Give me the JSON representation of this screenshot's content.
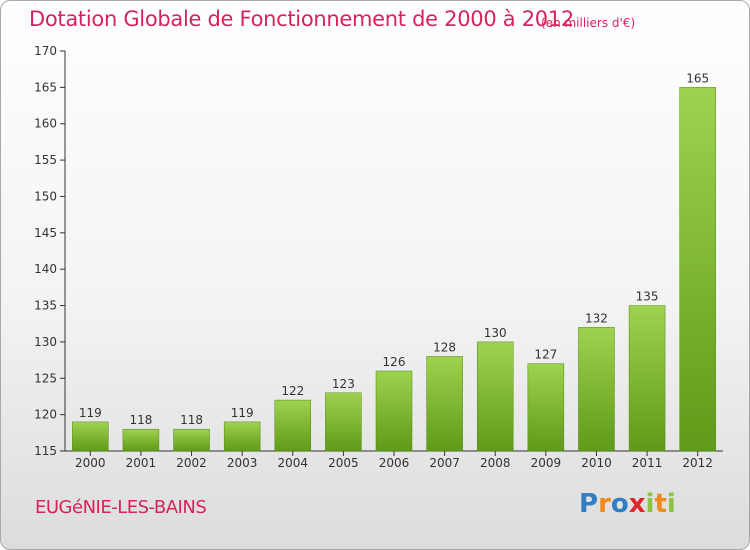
{
  "header": {
    "title": "Dotation Globale de Fonctionnement de 2000 à 2012",
    "subtitle": "(en milliers d'€)"
  },
  "footer": {
    "commune": "EUGéNIE-LES-BAINS",
    "logo_letters": [
      "P",
      "r",
      "o",
      "x",
      "i",
      "t",
      "i"
    ],
    "logo_colors": [
      "#2f7fc1",
      "#f08a1c",
      "#2f7fc1",
      "#e2262b",
      "#8cc43f",
      "#f08a1c",
      "#8cc43f"
    ]
  },
  "chart_data": {
    "type": "bar",
    "categories": [
      "2000",
      "2001",
      "2002",
      "2003",
      "2004",
      "2005",
      "2006",
      "2007",
      "2008",
      "2009",
      "2010",
      "2011",
      "2012"
    ],
    "values": [
      119,
      118,
      118,
      119,
      122,
      123,
      126,
      128,
      130,
      127,
      132,
      135,
      165
    ],
    "ylim": [
      115,
      170
    ],
    "yticks": [
      115,
      120,
      125,
      130,
      135,
      140,
      145,
      150,
      155,
      160,
      165,
      170
    ],
    "grid": false,
    "bar_color_top": "#9fd24f",
    "bar_color_bottom": "#5f9a18"
  }
}
